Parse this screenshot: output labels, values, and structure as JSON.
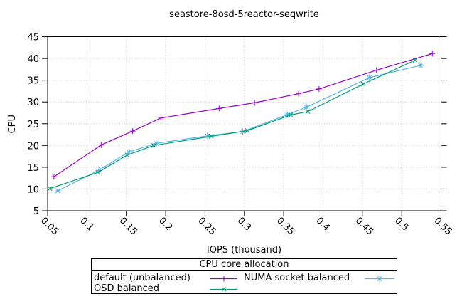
{
  "chart_data": {
    "type": "line",
    "title": "seastore-8osd-5reactor-seqwrite",
    "xlabel": "IOPS (thousand)",
    "ylabel": "CPU",
    "xlim": [
      0.05,
      0.55
    ],
    "ylim": [
      5,
      45
    ],
    "xticks": [
      0.05,
      0.1,
      0.15,
      0.2,
      0.25,
      0.3,
      0.35,
      0.4,
      0.45,
      0.5,
      0.55
    ],
    "xtick_labels": [
      "0.05",
      "0.1",
      "0.15",
      "0.2",
      "0.25",
      "0.3",
      "0.35",
      "0.4",
      "0.45",
      "0.5",
      "0.55"
    ],
    "yticks": [
      5,
      10,
      15,
      20,
      25,
      30,
      35,
      40,
      45
    ],
    "grid": true,
    "legend": {
      "title": "CPU core allocation",
      "position": "bottom-outside"
    },
    "colors": {
      "axis": "#000000",
      "grid": "#c3c3c3",
      "background": "#ffffff"
    },
    "series": [
      {
        "name": "default (unbalanced)",
        "color": "#9400d3",
        "marker": "plus",
        "points": [
          [
            0.058,
            12.8
          ],
          [
            0.118,
            20.1
          ],
          [
            0.158,
            23.3
          ],
          [
            0.194,
            26.3
          ],
          [
            0.268,
            28.5
          ],
          [
            0.313,
            29.8
          ],
          [
            0.369,
            31.9
          ],
          [
            0.395,
            33.0
          ],
          [
            0.468,
            37.3
          ],
          [
            0.539,
            41.1
          ]
        ]
      },
      {
        "name": "NUMA socket balanced",
        "color": "#56b4e9",
        "marker": "asterisk",
        "points": [
          [
            0.063,
            9.6
          ],
          [
            0.115,
            14.3
          ],
          [
            0.153,
            18.5
          ],
          [
            0.188,
            20.5
          ],
          [
            0.253,
            22.2
          ],
          [
            0.298,
            23.2
          ],
          [
            0.355,
            27.1
          ],
          [
            0.379,
            28.8
          ],
          [
            0.459,
            35.6
          ],
          [
            0.524,
            38.4
          ]
        ]
      },
      {
        "name": "OSD balanced",
        "color": "#009e73",
        "marker": "cross",
        "points": [
          [
            0.053,
            10.1
          ],
          [
            0.114,
            13.8
          ],
          [
            0.151,
            17.8
          ],
          [
            0.185,
            20.0
          ],
          [
            0.258,
            22.1
          ],
          [
            0.304,
            23.4
          ],
          [
            0.359,
            27.0
          ],
          [
            0.381,
            27.8
          ],
          [
            0.451,
            34.1
          ],
          [
            0.517,
            39.6
          ]
        ]
      }
    ]
  }
}
